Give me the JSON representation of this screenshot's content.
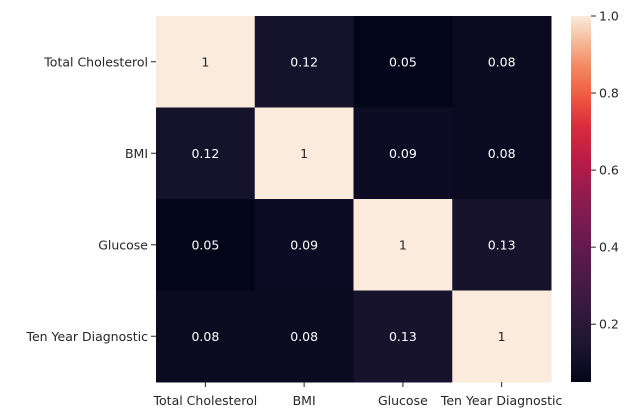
{
  "chart_data": {
    "type": "heatmap",
    "title": "",
    "xlabel": "",
    "ylabel": "",
    "rows": [
      "Total Cholesterol",
      "BMI",
      "Glucose",
      "Ten Year Diagnostic"
    ],
    "columns": [
      "Total Cholesterol",
      "BMI",
      "Glucose",
      "Ten Year Diagnostic"
    ],
    "values": [
      [
        1,
        0.12,
        0.05,
        0.08
      ],
      [
        0.12,
        1,
        0.09,
        0.08
      ],
      [
        0.05,
        0.09,
        1,
        0.13
      ],
      [
        0.08,
        0.08,
        0.13,
        1
      ]
    ],
    "annotations": [
      [
        "1",
        "0.12",
        "0.05",
        "0.08"
      ],
      [
        "0.12",
        "1",
        "0.09",
        "0.08"
      ],
      [
        "0.05",
        "0.09",
        "1",
        "0.13"
      ],
      [
        "0.08",
        "0.08",
        "0.13",
        "1"
      ]
    ],
    "colorbar": {
      "range": [
        0.05,
        1
      ],
      "ticks": [
        0.2,
        0.4,
        0.6,
        0.8,
        1.0
      ],
      "tick_labels": [
        "0.2",
        "0.4",
        "0.6",
        "0.8",
        "1.0"
      ],
      "colormap": "rocket"
    },
    "grid": false
  }
}
